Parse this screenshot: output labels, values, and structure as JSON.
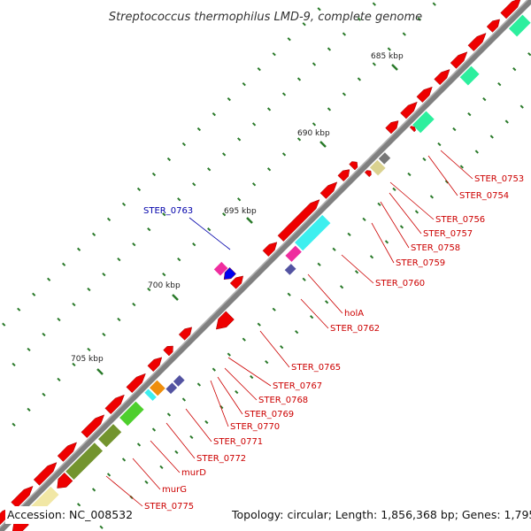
{
  "title": "Streptococcus thermophilus LMD-9, complete genome",
  "footer": {
    "accession": "Accession: NC_008532",
    "summary": "Topology: circular; Length: 1,856,368 bp; Genes: 1,795"
  },
  "colors": {
    "backbone": "#808080",
    "tick": "#2a7a2a",
    "label_red": "#cc0000",
    "label_blue": "#0000aa"
  },
  "position_labels": [
    "685 kbp",
    "690 kbp",
    "695 kbp",
    "700 kbp",
    "705 kbp"
  ],
  "genes": [
    {
      "label": "STER_0753",
      "color": "red"
    },
    {
      "label": "STER_0754",
      "color": "red"
    },
    {
      "label": "STER_0756",
      "color": "red"
    },
    {
      "label": "STER_0757",
      "color": "red"
    },
    {
      "label": "STER_0758",
      "color": "red"
    },
    {
      "label": "STER_0759",
      "color": "red"
    },
    {
      "label": "STER_0760",
      "color": "red"
    },
    {
      "label": "holA",
      "color": "red"
    },
    {
      "label": "STER_0762",
      "color": "red"
    },
    {
      "label": "STER_0763",
      "color": "blue"
    },
    {
      "label": "STER_0765",
      "color": "red"
    },
    {
      "label": "STER_0767",
      "color": "red"
    },
    {
      "label": "STER_0768",
      "color": "red"
    },
    {
      "label": "STER_0769",
      "color": "red"
    },
    {
      "label": "STER_0770",
      "color": "red"
    },
    {
      "label": "STER_0771",
      "color": "red"
    },
    {
      "label": "STER_0772",
      "color": "red"
    },
    {
      "label": "murD",
      "color": "red"
    },
    {
      "label": "murG",
      "color": "red"
    },
    {
      "label": "STER_0775",
      "color": "red"
    }
  ]
}
